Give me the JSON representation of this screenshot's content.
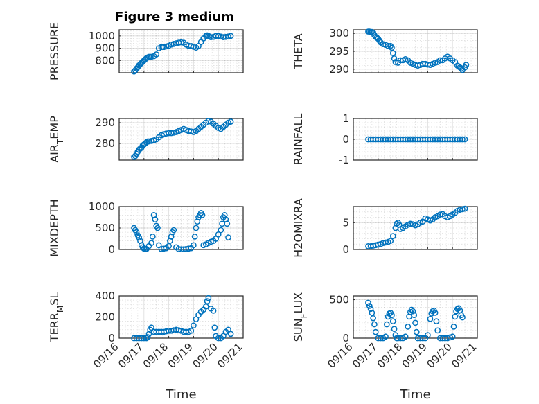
{
  "figure_title": "Figure 3 medium",
  "colors": {
    "marker": "#0072BD",
    "axes": "#262626"
  },
  "chart_data": [
    {
      "type": "scatter",
      "ylabel": "PRESSURE",
      "xlabel": "",
      "title": "Figure 3 medium",
      "xlim": [
        0,
        5
      ],
      "ylim": [
        700,
        1050
      ],
      "xticks": [],
      "yticks": [
        800,
        900,
        1000
      ],
      "grid": true,
      "series": [
        {
          "x": [
            0.6,
            0.65,
            0.7,
            0.75,
            0.8,
            0.85,
            0.9,
            0.95,
            1.0,
            1.05,
            1.1,
            1.15,
            1.2,
            1.25,
            1.3,
            1.4,
            1.5,
            1.6,
            1.7,
            1.75,
            1.8,
            1.9,
            2.0,
            2.1,
            2.2,
            2.3,
            2.4,
            2.5,
            2.6,
            2.7,
            2.8,
            2.9,
            3.0,
            3.1,
            3.2,
            3.3,
            3.4,
            3.5,
            3.55,
            3.6,
            3.65,
            3.7,
            3.8,
            3.9,
            4.0,
            4.1,
            4.2,
            4.3,
            4.4,
            4.5
          ],
          "y": [
            710,
            720,
            735,
            745,
            760,
            770,
            780,
            790,
            800,
            810,
            818,
            825,
            830,
            830,
            830,
            835,
            850,
            900,
            910,
            912,
            910,
            915,
            920,
            930,
            935,
            940,
            945,
            948,
            945,
            930,
            920,
            918,
            912,
            905,
            918,
            950,
            980,
            1000,
            1005,
            1000,
            995,
            990,
            992,
            1000,
            1000,
            995,
            990,
            992,
            995,
            1000
          ]
        }
      ]
    },
    {
      "type": "scatter",
      "ylabel": "THETA",
      "xlabel": "",
      "xlim": [
        0,
        5
      ],
      "ylim": [
        289,
        301
      ],
      "xticks": [],
      "yticks": [
        290,
        295,
        300
      ],
      "grid": true,
      "series": [
        {
          "x": [
            0.6,
            0.65,
            0.7,
            0.75,
            0.8,
            0.85,
            0.9,
            0.95,
            1.0,
            1.05,
            1.1,
            1.2,
            1.3,
            1.4,
            1.5,
            1.55,
            1.6,
            1.65,
            1.7,
            1.8,
            1.9,
            2.0,
            2.1,
            2.2,
            2.3,
            2.4,
            2.5,
            2.6,
            2.7,
            2.8,
            2.9,
            3.0,
            3.1,
            3.2,
            3.3,
            3.4,
            3.5,
            3.6,
            3.7,
            3.8,
            3.9,
            4.0,
            4.1,
            4.2,
            4.25,
            4.3,
            4.35,
            4.4,
            4.5,
            4.55
          ],
          "y": [
            300.5,
            300.5,
            300.4,
            300.4,
            300.2,
            299.5,
            299,
            298.8,
            298.5,
            298,
            297.5,
            297,
            296.8,
            296.5,
            296.5,
            296,
            294.5,
            293,
            292,
            291.8,
            292.5,
            292.5,
            292.8,
            292.5,
            291.8,
            291.5,
            291.2,
            291,
            291.2,
            291.5,
            291.5,
            291.3,
            291.2,
            291.5,
            291.8,
            292,
            292.5,
            292.5,
            293,
            293.5,
            293,
            292.5,
            292,
            291,
            290.8,
            290.5,
            290.2,
            289.8,
            290.5,
            291.2
          ]
        }
      ]
    },
    {
      "type": "scatter",
      "ylabel": "AIR_TEMP",
      "xlabel": "",
      "xlim": [
        0,
        5
      ],
      "ylim": [
        272,
        292
      ],
      "xticks": [],
      "yticks": [
        280,
        290
      ],
      "grid": true,
      "series": [
        {
          "x": [
            0.6,
            0.65,
            0.7,
            0.75,
            0.8,
            0.85,
            0.9,
            0.95,
            1.0,
            1.05,
            1.1,
            1.15,
            1.2,
            1.3,
            1.4,
            1.5,
            1.6,
            1.7,
            1.8,
            1.9,
            2.0,
            2.1,
            2.2,
            2.3,
            2.4,
            2.5,
            2.6,
            2.7,
            2.8,
            2.9,
            3.0,
            3.1,
            3.2,
            3.3,
            3.4,
            3.5,
            3.6,
            3.7,
            3.8,
            3.9,
            4.0,
            4.1,
            4.2,
            4.3,
            4.4,
            4.5
          ],
          "y": [
            273.5,
            274,
            275,
            276,
            277,
            277.5,
            278,
            279,
            279.5,
            280,
            280.5,
            281,
            281,
            281.2,
            281.5,
            282,
            283,
            284,
            284.5,
            284.8,
            285,
            285,
            285.2,
            285.5,
            286,
            286.5,
            287,
            286.5,
            286,
            285.8,
            285.5,
            286,
            287,
            288,
            289,
            290,
            290.8,
            290.5,
            289.5,
            288.5,
            287.5,
            287,
            288,
            289,
            290,
            290.5
          ]
        }
      ]
    },
    {
      "type": "scatter",
      "ylabel": "RAINFALL",
      "xlabel": "",
      "xlim": [
        0,
        5
      ],
      "ylim": [
        -1,
        1
      ],
      "xticks": [],
      "yticks": [
        -1,
        0,
        1
      ],
      "grid": true,
      "series": [
        {
          "x": [
            0.6,
            0.7,
            0.8,
            0.9,
            1.0,
            1.1,
            1.2,
            1.3,
            1.4,
            1.5,
            1.6,
            1.7,
            1.8,
            1.9,
            2.0,
            2.1,
            2.2,
            2.3,
            2.4,
            2.5,
            2.6,
            2.7,
            2.8,
            2.9,
            3.0,
            3.1,
            3.2,
            3.3,
            3.4,
            3.5,
            3.6,
            3.7,
            3.8,
            3.9,
            4.0,
            4.1,
            4.2,
            4.3,
            4.4,
            4.5
          ],
          "y": [
            0,
            0,
            0,
            0,
            0,
            0,
            0,
            0,
            0,
            0,
            0,
            0,
            0,
            0,
            0,
            0,
            0,
            0,
            0,
            0,
            0,
            0,
            0,
            0,
            0,
            0,
            0,
            0,
            0,
            0,
            0,
            0,
            0,
            0,
            0,
            0,
            0,
            0,
            0,
            0
          ]
        }
      ]
    },
    {
      "type": "scatter",
      "ylabel": "MIXDEPTH",
      "xlabel": "",
      "xlim": [
        0,
        5
      ],
      "ylim": [
        0,
        1000
      ],
      "xticks": [],
      "yticks": [
        0,
        500,
        1000
      ],
      "grid": true,
      "series": [
        {
          "x": [
            0.6,
            0.65,
            0.7,
            0.75,
            0.8,
            0.85,
            0.9,
            0.95,
            1.0,
            1.05,
            1.1,
            1.2,
            1.3,
            1.35,
            1.4,
            1.45,
            1.5,
            1.55,
            1.6,
            1.7,
            1.8,
            1.9,
            2.0,
            2.05,
            2.1,
            2.15,
            2.2,
            2.3,
            2.4,
            2.5,
            2.6,
            2.7,
            2.8,
            2.9,
            3.0,
            3.05,
            3.1,
            3.15,
            3.2,
            3.25,
            3.3,
            3.35,
            3.4,
            3.5,
            3.6,
            3.7,
            3.8,
            3.9,
            4.0,
            4.1,
            4.15,
            4.2,
            4.25,
            4.3,
            4.35,
            4.4
          ],
          "y": [
            500,
            450,
            400,
            330,
            280,
            200,
            100,
            50,
            20,
            10,
            10,
            80,
            150,
            300,
            800,
            700,
            550,
            500,
            100,
            10,
            20,
            30,
            80,
            200,
            300,
            400,
            450,
            50,
            10,
            5,
            5,
            10,
            20,
            30,
            100,
            300,
            500,
            650,
            750,
            800,
            850,
            800,
            100,
            120,
            150,
            180,
            200,
            250,
            350,
            450,
            600,
            750,
            800,
            700,
            600,
            280
          ]
        }
      ]
    },
    {
      "type": "scatter",
      "ylabel": "H2OMIXRA",
      "xlabel": "",
      "xlim": [
        0,
        5
      ],
      "ylim": [
        0,
        8
      ],
      "xticks": [],
      "yticks": [
        0,
        5
      ],
      "grid": true,
      "series": [
        {
          "x": [
            0.6,
            0.7,
            0.8,
            0.9,
            1.0,
            1.1,
            1.2,
            1.3,
            1.4,
            1.5,
            1.6,
            1.7,
            1.75,
            1.8,
            1.85,
            1.9,
            2.0,
            2.1,
            2.2,
            2.3,
            2.4,
            2.5,
            2.6,
            2.7,
            2.8,
            2.9,
            3.0,
            3.1,
            3.2,
            3.3,
            3.4,
            3.5,
            3.6,
            3.7,
            3.8,
            3.9,
            4.0,
            4.1,
            4.2,
            4.3,
            4.4,
            4.5
          ],
          "y": [
            0.6,
            0.6,
            0.7,
            0.8,
            0.9,
            1.0,
            1.2,
            1.3,
            1.4,
            1.6,
            2.5,
            4.0,
            4.8,
            5.0,
            4.6,
            3.8,
            4.0,
            4.3,
            4.6,
            4.8,
            4.7,
            4.5,
            4.7,
            5.0,
            5.2,
            5.8,
            5.6,
            5.4,
            5.6,
            6.0,
            6.2,
            6.5,
            6.6,
            6.2,
            6.0,
            6.2,
            6.5,
            6.8,
            7.2,
            7.4,
            7.5,
            7.6
          ]
        }
      ]
    },
    {
      "type": "scatter",
      "ylabel": "TERR_MSL",
      "xlabel": "Time",
      "xlim": [
        0,
        5
      ],
      "ylim": [
        0,
        400
      ],
      "xticks": [
        "09/16",
        "09/17",
        "09/18",
        "09/19",
        "09/20",
        "09/21"
      ],
      "yticks": [
        0,
        200,
        400
      ],
      "grid": true,
      "series": [
        {
          "x": [
            0.6,
            0.7,
            0.8,
            0.9,
            1.0,
            1.1,
            1.15,
            1.2,
            1.25,
            1.3,
            1.4,
            1.5,
            1.6,
            1.7,
            1.8,
            1.9,
            2.0,
            2.1,
            2.2,
            2.3,
            2.4,
            2.5,
            2.6,
            2.7,
            2.8,
            2.9,
            3.0,
            3.1,
            3.2,
            3.3,
            3.4,
            3.5,
            3.55,
            3.6,
            3.7,
            3.8,
            3.85,
            3.9,
            4.0,
            4.1,
            4.2,
            4.3,
            4.4,
            4.5
          ],
          "y": [
            0,
            0,
            0,
            0,
            0,
            0,
            10,
            40,
            80,
            100,
            60,
            60,
            60,
            60,
            60,
            65,
            70,
            70,
            75,
            80,
            75,
            70,
            60,
            60,
            60,
            70,
            120,
            180,
            220,
            250,
            270,
            300,
            350,
            380,
            280,
            260,
            100,
            20,
            0,
            0,
            20,
            60,
            80,
            40
          ]
        }
      ]
    },
    {
      "type": "scatter",
      "ylabel": "SUN_FLUX",
      "xlabel": "Time",
      "xlim": [
        0,
        5
      ],
      "ylim": [
        0,
        550
      ],
      "xticks": [
        "09/16",
        "09/17",
        "09/18",
        "09/19",
        "09/20",
        "09/21"
      ],
      "yticks": [
        0,
        500
      ],
      "grid": true,
      "series": [
        {
          "x": [
            0.6,
            0.65,
            0.7,
            0.75,
            0.8,
            0.85,
            0.9,
            1.0,
            1.1,
            1.2,
            1.3,
            1.35,
            1.4,
            1.45,
            1.5,
            1.55,
            1.6,
            1.65,
            1.7,
            1.75,
            1.8,
            1.9,
            2.0,
            2.1,
            2.2,
            2.25,
            2.3,
            2.35,
            2.4,
            2.45,
            2.5,
            2.55,
            2.6,
            2.7,
            2.8,
            2.9,
            3.0,
            3.1,
            3.15,
            3.2,
            3.25,
            3.3,
            3.35,
            3.4,
            3.5,
            3.6,
            3.7,
            3.8,
            3.9,
            4.0,
            4.05,
            4.1,
            4.15,
            4.2,
            4.25,
            4.3,
            4.35,
            4.4
          ],
          "y": [
            460,
            420,
            380,
            330,
            260,
            180,
            80,
            0,
            0,
            0,
            20,
            180,
            280,
            320,
            330,
            300,
            220,
            120,
            40,
            0,
            0,
            0,
            0,
            20,
            150,
            280,
            340,
            370,
            350,
            300,
            200,
            80,
            0,
            0,
            0,
            0,
            40,
            250,
            320,
            350,
            360,
            330,
            220,
            100,
            0,
            0,
            0,
            0,
            10,
            20,
            150,
            280,
            350,
            380,
            390,
            360,
            300,
            270
          ]
        }
      ]
    }
  ]
}
